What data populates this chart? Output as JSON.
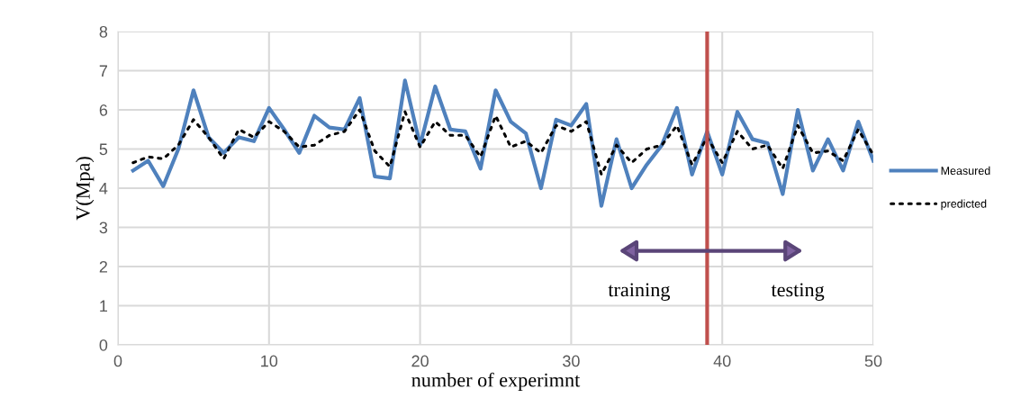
{
  "chart_data": {
    "type": "line",
    "xlabel": "number of experimnt",
    "ylabel": "V(Mpa)",
    "x": [
      1,
      2,
      3,
      4,
      5,
      6,
      7,
      8,
      9,
      10,
      11,
      12,
      13,
      14,
      15,
      16,
      17,
      18,
      19,
      20,
      21,
      22,
      23,
      24,
      25,
      26,
      27,
      28,
      29,
      30,
      31,
      32,
      33,
      34,
      35,
      36,
      37,
      38,
      39,
      40,
      41,
      42,
      43,
      44,
      45,
      46,
      47,
      48,
      49,
      50
    ],
    "series": [
      {
        "name": "Measured",
        "color": "#4f81bd",
        "line_style": "solid",
        "values": [
          4.45,
          4.7,
          4.05,
          5.0,
          6.5,
          5.3,
          4.9,
          5.3,
          5.2,
          6.05,
          5.5,
          4.9,
          5.85,
          5.55,
          5.5,
          6.3,
          4.3,
          4.25,
          6.75,
          5.1,
          6.6,
          5.5,
          5.45,
          4.5,
          6.5,
          5.7,
          5.4,
          4.0,
          5.75,
          5.6,
          6.15,
          3.55,
          5.25,
          4.0,
          4.6,
          5.1,
          6.05,
          4.35,
          5.45,
          4.35,
          5.95,
          5.25,
          5.15,
          3.85,
          6.0,
          4.45,
          5.25,
          4.45,
          5.7,
          4.7
        ]
      },
      {
        "name": "predicted",
        "color": "#000000",
        "line_style": "dotted",
        "values": [
          4.65,
          4.8,
          4.75,
          5.1,
          5.75,
          5.3,
          4.75,
          5.5,
          5.3,
          5.7,
          5.45,
          5.05,
          5.1,
          5.35,
          5.45,
          6.0,
          4.95,
          4.55,
          5.95,
          5.05,
          5.7,
          5.35,
          5.35,
          4.8,
          5.85,
          5.05,
          5.2,
          4.9,
          5.6,
          5.45,
          5.7,
          4.35,
          5.1,
          4.65,
          5.0,
          5.1,
          5.6,
          4.6,
          5.3,
          4.65,
          5.45,
          5.0,
          5.1,
          4.5,
          5.6,
          4.9,
          4.95,
          4.7,
          5.5,
          4.85
        ]
      }
    ],
    "xlim": [
      0,
      50
    ],
    "xticks": [
      0,
      10,
      20,
      30,
      40,
      50
    ],
    "ylim": [
      0,
      8
    ],
    "yticks": [
      0,
      1,
      2,
      3,
      4,
      5,
      6,
      7,
      8
    ],
    "grid": true,
    "legend": "right",
    "marker": "none",
    "ref_lines": [
      {
        "axis": "x",
        "value": 39,
        "color": "#c0504d",
        "line_style": "solid"
      }
    ],
    "annotations": [
      "training",
      "testing"
    ]
  }
}
